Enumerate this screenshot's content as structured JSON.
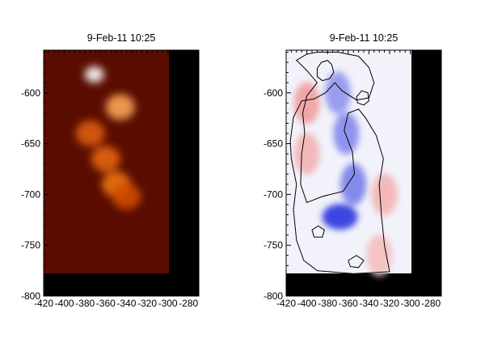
{
  "chart_data": [
    {
      "type": "heatmap",
      "title": "9-Feb-11 10:25",
      "colormap": "hot (black-red-orange-white)",
      "colors": [
        "#000000",
        "#6e0a00",
        "#c83c00",
        "#f07814",
        "#ffd296",
        "#ffffff"
      ],
      "xlim": [
        -420,
        -270
      ],
      "ylim": [
        -800,
        -558
      ],
      "x_ticks": [
        -420,
        -400,
        -380,
        -360,
        -340,
        -320,
        -300,
        -280
      ],
      "x_tick_labels": [
        "-420",
        "-400",
        "-380",
        "-360",
        "-340",
        "-320",
        "-300",
        "-280"
      ],
      "y_ticks": [
        -800,
        -750,
        -700,
        -650,
        -600
      ],
      "y_tick_labels": [
        "-800",
        "-750",
        "-700",
        "-650",
        "-600"
      ],
      "data_extent": {
        "x": [
          -420,
          -320
        ],
        "y": [
          -778,
          -558
        ]
      },
      "background": "black outside data extent",
      "features": [
        {
          "label": "bright kernel",
          "x": -371,
          "y": -582,
          "intensity": 1.0
        },
        {
          "label": "bright patch",
          "x": -346,
          "y": -614,
          "intensity": 0.8
        },
        {
          "label": "bright ribbon",
          "x": -375,
          "y": -640,
          "intensity": 0.62
        },
        {
          "label": "bright ribbon",
          "x": -360,
          "y": -665,
          "intensity": 0.65
        },
        {
          "label": "bright ribbon",
          "x": -350,
          "y": -690,
          "intensity": 0.7
        },
        {
          "label": "bright ribbon",
          "x": -340,
          "y": -702,
          "intensity": 0.55
        }
      ]
    },
    {
      "type": "heatmap",
      "title": "9-Feb-11 10:25",
      "colormap": "blue-white-red (diverging)",
      "colors": [
        "#1e28dc",
        "#ffffff",
        "#dc1e1e"
      ],
      "xlim": [
        -420,
        -270
      ],
      "ylim": [
        -800,
        -558
      ],
      "x_ticks": [
        -420,
        -400,
        -380,
        -360,
        -340,
        -320,
        -300,
        -280
      ],
      "x_tick_labels": [
        "-420",
        "-400",
        "-380",
        "-360",
        "-340",
        "-320",
        "-300",
        "-280"
      ],
      "y_ticks": [
        -800,
        -750,
        -700,
        -650,
        -600
      ],
      "y_tick_labels": [
        "-800",
        "-750",
        "-700",
        "-650",
        "-600"
      ],
      "data_extent": {
        "x": [
          -420,
          -320
        ],
        "y": [
          -778,
          -558
        ]
      },
      "background": "black outside data extent",
      "features": [
        {
          "label": "blueshift column",
          "x": -362,
          "y": -640,
          "value": -0.55
        },
        {
          "label": "blueshift column",
          "x": -370,
          "y": -600,
          "value": -0.5
        },
        {
          "label": "strong blueshift",
          "x": -368,
          "y": -722,
          "value": -0.95
        },
        {
          "label": "blueshift",
          "x": -355,
          "y": -690,
          "value": -0.6
        },
        {
          "label": "redshift",
          "x": -400,
          "y": -610,
          "value": 0.45
        },
        {
          "label": "redshift",
          "x": -400,
          "y": -660,
          "value": 0.35
        },
        {
          "label": "redshift",
          "x": -325,
          "y": -700,
          "value": 0.35
        },
        {
          "label": "redshift",
          "x": -330,
          "y": -760,
          "value": 0.3
        }
      ],
      "contours": [
        [
          [
            -410,
            -568
          ],
          [
            -400,
            -562
          ],
          [
            -390,
            -560
          ],
          [
            -370,
            -560
          ],
          [
            -350,
            -564
          ],
          [
            -340,
            -575
          ],
          [
            -335,
            -590
          ],
          [
            -340,
            -605
          ],
          [
            -352,
            -607
          ],
          [
            -366,
            -598
          ],
          [
            -373,
            -590
          ],
          [
            -382,
            -600
          ],
          [
            -393,
            -606
          ],
          [
            -405,
            -608
          ],
          [
            -413,
            -624
          ],
          [
            -416,
            -648
          ],
          [
            -415,
            -665
          ],
          [
            -410,
            -690
          ],
          [
            -413,
            -715
          ],
          [
            -410,
            -745
          ],
          [
            -403,
            -765
          ],
          [
            -390,
            -775
          ],
          [
            -355,
            -778
          ],
          [
            -320,
            -776
          ],
          [
            -325,
            -750
          ],
          [
            -328,
            -720
          ],
          [
            -330,
            -690
          ],
          [
            -326,
            -665
          ],
          [
            -333,
            -642
          ],
          [
            -343,
            -625
          ],
          [
            -350,
            -616
          ],
          [
            -360,
            -620
          ],
          [
            -364,
            -637
          ],
          [
            -356,
            -658
          ],
          [
            -354,
            -680
          ],
          [
            -365,
            -697
          ],
          [
            -385,
            -702
          ],
          [
            -400,
            -708
          ],
          [
            -406,
            -690
          ],
          [
            -405,
            -660
          ],
          [
            -402,
            -640
          ],
          [
            -404,
            -620
          ],
          [
            -400,
            -603
          ],
          [
            -390,
            -590
          ],
          [
            -400,
            -578
          ]
        ],
        [
          [
            -390,
            -576
          ],
          [
            -386,
            -570
          ],
          [
            -380,
            -568
          ],
          [
            -376,
            -572
          ],
          [
            -374,
            -580
          ],
          [
            -378,
            -586
          ],
          [
            -385,
            -588
          ],
          [
            -390,
            -584
          ]
        ],
        [
          [
            -352,
            -604
          ],
          [
            -347,
            -598
          ],
          [
            -341,
            -600
          ],
          [
            -340,
            -608
          ],
          [
            -345,
            -612
          ],
          [
            -351,
            -610
          ]
        ],
        [
          [
            -395,
            -735
          ],
          [
            -389,
            -731
          ],
          [
            -383,
            -735
          ],
          [
            -385,
            -742
          ],
          [
            -393,
            -742
          ]
        ],
        [
          [
            -360,
            -765
          ],
          [
            -352,
            -760
          ],
          [
            -345,
            -765
          ],
          [
            -350,
            -772
          ],
          [
            -358,
            -771
          ]
        ]
      ]
    }
  ]
}
